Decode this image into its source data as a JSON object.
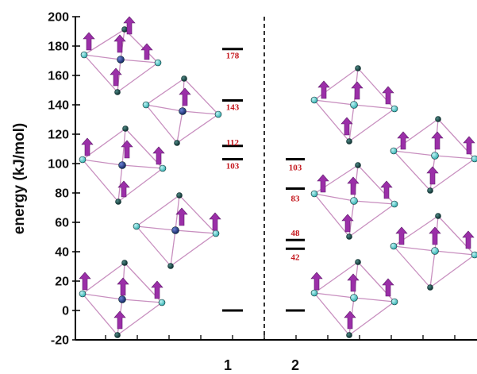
{
  "chart_data": {
    "type": "energy-level-diagram",
    "ylabel": "energy (kJ/mol)",
    "ylim": [
      -20,
      200
    ],
    "yticks": [
      -20,
      0,
      20,
      40,
      60,
      80,
      100,
      120,
      140,
      160,
      180,
      200
    ],
    "ytick_labels": [
      "-20",
      "0",
      "20",
      "40",
      "60",
      "80",
      "100",
      "120",
      "140",
      "160",
      "180",
      "200"
    ],
    "categories": [
      "1",
      "2"
    ],
    "series": [
      {
        "category": "1",
        "levels": [
          {
            "value": 0,
            "label": ""
          },
          {
            "value": 103,
            "label": "103"
          },
          {
            "value": 112,
            "label": "112"
          },
          {
            "value": 143,
            "label": "143"
          },
          {
            "value": 178,
            "label": "178"
          }
        ]
      },
      {
        "category": "2",
        "levels": [
          {
            "value": 0,
            "label": ""
          },
          {
            "value": 42,
            "label": "42"
          },
          {
            "value": 48,
            "label": "48"
          },
          {
            "value": 83,
            "label": "83"
          },
          {
            "value": 103,
            "label": "103"
          }
        ]
      }
    ],
    "divider": "dashed vertical line between 1 and 2",
    "grid": false,
    "colors": {
      "level_line": "#000000",
      "level_label": "#c4161c",
      "spin_arrow": "#9b2fa8",
      "bond": "#c88fbf",
      "cu_atom": "#3cc7c9",
      "metal_atom": "#1c2f7a",
      "dark_atom": "#0f3f3f"
    }
  }
}
